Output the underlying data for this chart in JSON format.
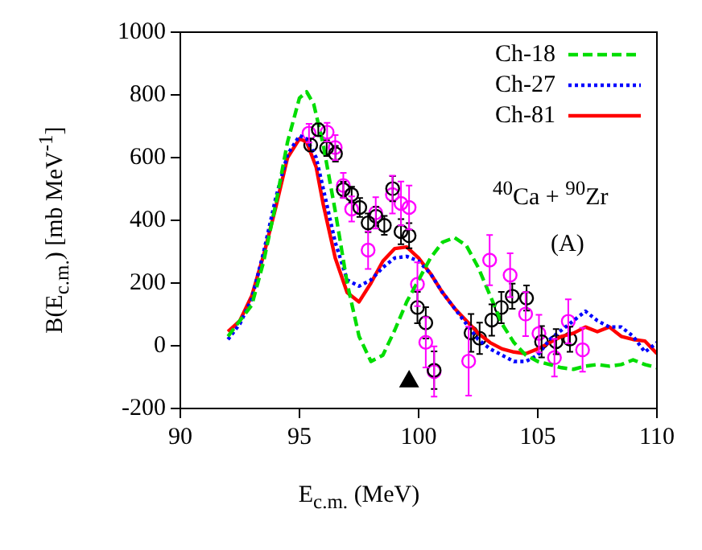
{
  "chart_data": {
    "type": "line",
    "xlabel": "E$_{c.m.}$  (MeV)",
    "ylabel": "B(E$_{c.m.}$)  [mb MeV$^{-1}$]",
    "annotations": [
      "$^{40}$Ca + $^{90}$Zr",
      "(A)"
    ],
    "xlim": [
      90,
      110
    ],
    "xticks": [
      90,
      95,
      100,
      105,
      110
    ],
    "ylim": [
      -200,
      1000
    ],
    "yticks": [
      -200,
      0,
      200,
      400,
      600,
      800,
      1000
    ],
    "grid": false,
    "legend": "top right",
    "marker": "none",
    "series": [
      {
        "name": "Ch-18",
        "color": "#00dd00",
        "line_style": "dashed",
        "x": [
          92,
          93,
          93.5,
          94,
          94.5,
          95,
          95.3,
          95.6,
          96,
          96.5,
          97,
          97.5,
          98,
          98.5,
          99,
          99.5,
          100,
          100.5,
          101,
          101.5,
          102,
          102.5,
          103,
          103.5,
          104,
          104.5,
          105,
          105.5,
          106,
          106.5,
          107,
          107.5,
          108,
          108.5,
          109,
          109.5,
          110
        ],
        "values": [
          30,
          130,
          270,
          450,
          650,
          790,
          810,
          770,
          640,
          430,
          200,
          30,
          -50,
          -30,
          50,
          140,
          210,
          280,
          330,
          345,
          320,
          250,
          160,
          70,
          10,
          -30,
          -50,
          -60,
          -70,
          -75,
          -65,
          -60,
          -65,
          -60,
          -45,
          -60,
          -70
        ]
      },
      {
        "name": "Ch-27",
        "color": "#0000ff",
        "line_style": "dotted",
        "x": [
          92,
          92.5,
          93,
          93.5,
          94,
          94.5,
          95,
          95.3,
          95.7,
          96,
          96.5,
          97,
          97.5,
          98,
          98.5,
          99,
          99.5,
          100,
          100.5,
          101,
          101.5,
          102,
          102.5,
          103,
          103.5,
          104,
          104.5,
          105,
          105.5,
          106,
          106.5,
          107,
          107.5,
          108,
          108.5,
          109,
          109.5,
          110
        ],
        "values": [
          20,
          70,
          150,
          300,
          470,
          610,
          670,
          660,
          600,
          500,
          330,
          210,
          190,
          210,
          250,
          280,
          285,
          270,
          230,
          170,
          120,
          70,
          20,
          -10,
          -30,
          -50,
          -50,
          -30,
          20,
          50,
          80,
          110,
          80,
          60,
          60,
          30,
          -20,
          10
        ]
      },
      {
        "name": "Ch-81",
        "color": "#ff0000",
        "line_style": "solid",
        "x": [
          92,
          92.5,
          93,
          93.5,
          94,
          94.5,
          95,
          95.3,
          95.7,
          96,
          96.5,
          97,
          97.5,
          98,
          98.5,
          99,
          99.5,
          100,
          100.5,
          101,
          101.5,
          102,
          102.5,
          103,
          103.5,
          104,
          104.5,
          105,
          105.5,
          106,
          106.5,
          107,
          107.5,
          108,
          108.5,
          109,
          109.5,
          110
        ],
        "values": [
          45,
          80,
          160,
          290,
          440,
          600,
          660,
          650,
          570,
          450,
          280,
          170,
          140,
          200,
          270,
          310,
          315,
          280,
          230,
          170,
          120,
          80,
          40,
          10,
          -10,
          -20,
          -25,
          -10,
          10,
          30,
          40,
          60,
          45,
          60,
          30,
          20,
          15,
          -25
        ]
      },
      {
        "type": "scatter",
        "marker": "circle",
        "color": "#000000",
        "x": [
          95.47,
          95.79,
          96.14,
          96.51,
          96.84,
          97.19,
          97.53,
          97.88,
          98.21,
          98.56,
          98.91,
          99.26,
          99.6,
          99.95,
          100.3,
          100.65,
          102.2,
          102.56,
          103.07,
          103.47,
          103.93,
          104.53,
          105.16,
          105.77,
          106.35
        ],
        "values": [
          640,
          689,
          630,
          612,
          498,
          482,
          441,
          392,
          413,
          384,
          501,
          364,
          351,
          122,
          73,
          -78,
          41,
          24,
          82,
          122,
          158,
          152,
          13,
          13,
          21
        ],
        "errors": [
          20,
          20,
          25,
          25,
          25,
          25,
          30,
          30,
          30,
          30,
          40,
          40,
          40,
          50,
          50,
          60,
          60,
          50,
          50,
          50,
          40,
          40,
          50,
          40,
          40
        ]
      },
      {
        "type": "scatter",
        "marker": "circle",
        "color": "#ff00ff",
        "x": [
          95.4,
          96.16,
          96.5,
          96.84,
          97.19,
          97.88,
          98.2,
          98.9,
          99.26,
          99.6,
          99.95,
          100.3,
          100.65,
          102.1,
          102.98,
          103.84,
          104.49,
          105.05,
          105.7,
          106.28,
          106.88
        ],
        "values": [
          678,
          681,
          632,
          511,
          436,
          305,
          424,
          482,
          454,
          441,
          196,
          11,
          -82,
          -49,
          273,
          225,
          101,
          39,
          -38,
          78,
          -13
        ],
        "errors": [
          30,
          30,
          40,
          40,
          40,
          60,
          50,
          60,
          70,
          70,
          70,
          80,
          80,
          110,
          80,
          70,
          70,
          60,
          60,
          70,
          70
        ]
      },
      {
        "type": "scatter",
        "marker": "triangle",
        "color": "#000000",
        "x": [
          99.6
        ],
        "values": [
          -114
        ]
      }
    ]
  }
}
